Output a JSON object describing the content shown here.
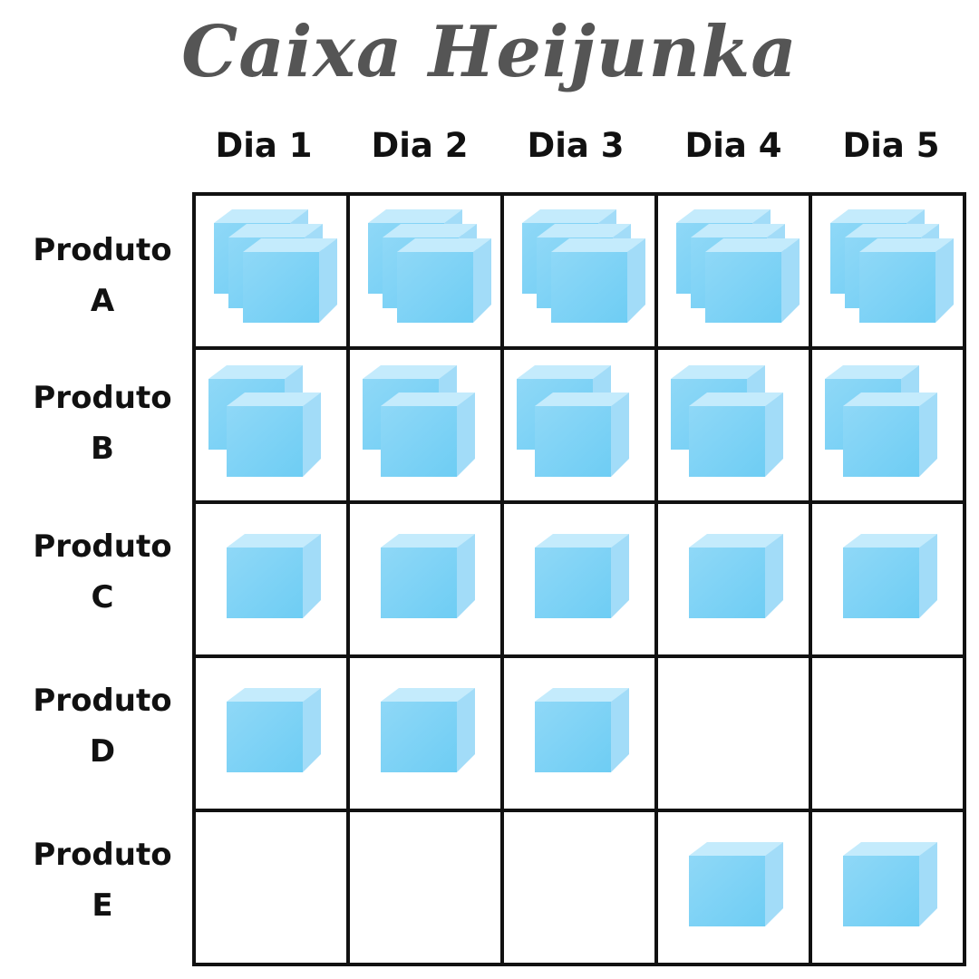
{
  "title": "Caixa Heijunka",
  "days": [
    "Dia 1",
    "Dia 2",
    "Dia 3",
    "Dia 4",
    "Dia 5"
  ],
  "products": [
    {
      "line1": "Produto",
      "line2": "A",
      "counts": [
        3,
        3,
        3,
        3,
        3
      ]
    },
    {
      "line1": "Produto",
      "line2": "B",
      "counts": [
        2,
        2,
        2,
        2,
        2
      ]
    },
    {
      "line1": "Produto",
      "line2": "C",
      "counts": [
        1,
        1,
        1,
        1,
        1
      ]
    },
    {
      "line1": "Produto",
      "line2": "D",
      "counts": [
        1,
        1,
        1,
        0,
        0
      ]
    },
    {
      "line1": "Produto",
      "line2": "E",
      "counts": [
        0,
        0,
        0,
        1,
        1
      ]
    }
  ],
  "colors": {
    "box_front": "#6ecdf4",
    "box_side": "#a2dcf8",
    "box_top": "#c4ebfc",
    "grid_line": "#111111",
    "title": "#555555"
  }
}
